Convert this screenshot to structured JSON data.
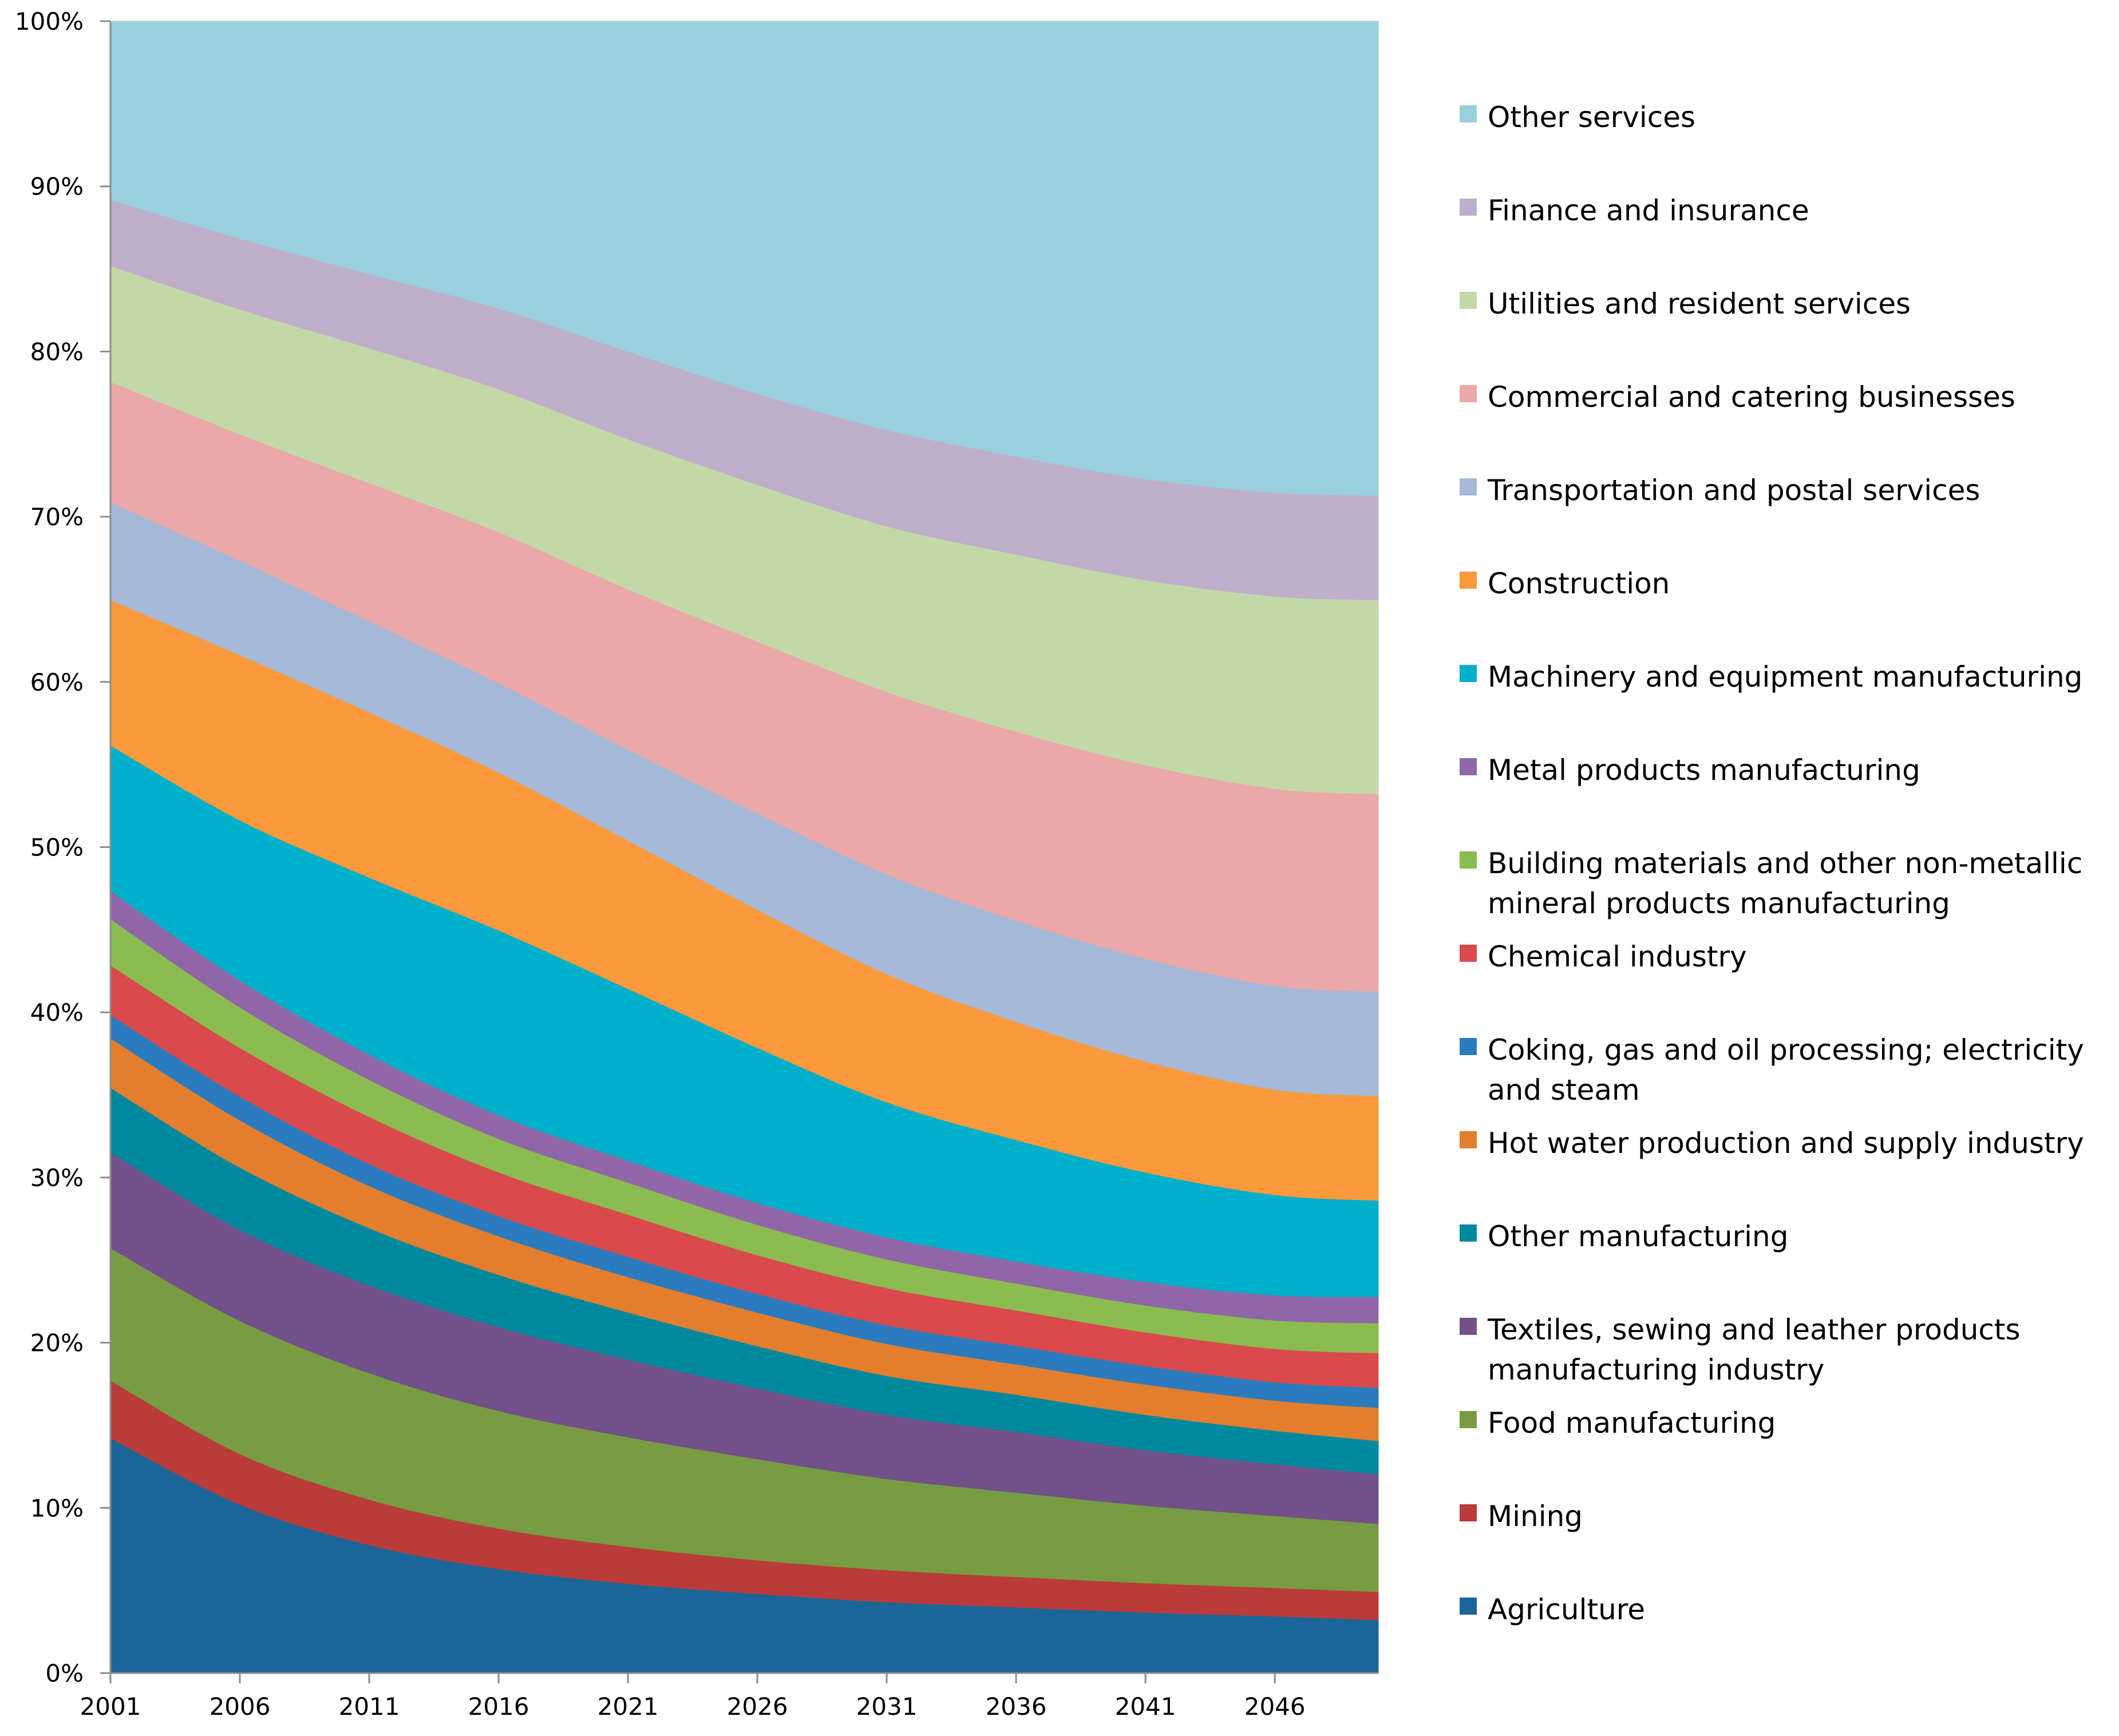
{
  "chart_data": {
    "type": "area",
    "stacked": true,
    "normalized": true,
    "title": "",
    "xlabel": "",
    "ylabel": "",
    "x": [
      2001,
      2006,
      2011,
      2016,
      2021,
      2026,
      2031,
      2036,
      2041,
      2046,
      2050
    ],
    "x_tick_labels": [
      "2001",
      "2006",
      "2011",
      "2016",
      "2021",
      "2026",
      "2031",
      "2036",
      "2041",
      "2046"
    ],
    "ylim": [
      0,
      100
    ],
    "y_ticks": [
      0,
      10,
      20,
      30,
      40,
      50,
      60,
      70,
      80,
      90,
      100
    ],
    "y_tick_labels": [
      "0%",
      "10%",
      "20%",
      "30%",
      "40%",
      "50%",
      "60%",
      "70%",
      "80%",
      "90%",
      "100%"
    ],
    "grid": false,
    "legend_position": "right",
    "series": [
      {
        "name": "Agriculture",
        "color": "#1a6699",
        "values": [
          14.2,
          10.0,
          7.6,
          6.2,
          5.3,
          4.7,
          4.2,
          3.9,
          3.6,
          3.4,
          3.2
        ]
      },
      {
        "name": "Mining",
        "color": "#b93c3a",
        "values": [
          3.5,
          3.0,
          2.7,
          2.4,
          2.2,
          2.0,
          1.9,
          1.8,
          1.75,
          1.7,
          1.7
        ]
      },
      {
        "name": "Food manufacturing",
        "color": "#779c41",
        "values": [
          8.0,
          7.9,
          7.5,
          7.0,
          6.5,
          6.0,
          5.4,
          5.0,
          4.6,
          4.3,
          4.1
        ]
      },
      {
        "name": "Textiles, sewing and leather products manufacturing industry",
        "color": "#72508a",
        "values": [
          5.8,
          5.4,
          5.2,
          5.0,
          4.6,
          4.2,
          3.8,
          3.6,
          3.3,
          3.1,
          3.0
        ]
      },
      {
        "name": "Other manufacturing",
        "color": "#00899e",
        "values": [
          3.9,
          3.7,
          3.4,
          3.1,
          2.8,
          2.5,
          2.3,
          2.2,
          2.1,
          2.0,
          2.0
        ]
      },
      {
        "name": "Hot water production and supply industry",
        "color": "#e27e2e",
        "values": [
          3.0,
          2.8,
          2.5,
          2.3,
          2.1,
          2.0,
          1.9,
          1.8,
          1.8,
          1.8,
          2.0
        ]
      },
      {
        "name": "Coking, gas and oil processing; electricity and steam",
        "color": "#2a7cbf",
        "values": [
          1.4,
          1.4,
          1.3,
          1.2,
          1.2,
          1.1,
          1.1,
          1.1,
          1.1,
          1.1,
          1.2
        ]
      },
      {
        "name": "Chemical industry",
        "color": "#d94a4d",
        "values": [
          3.0,
          2.9,
          2.8,
          2.6,
          2.5,
          2.3,
          2.2,
          2.1,
          2.0,
          2.0,
          2.1
        ]
      },
      {
        "name": "Building materials and other non-metallic mineral products manufacturing",
        "color": "#8cbb4f",
        "values": [
          2.8,
          2.4,
          2.2,
          2.0,
          1.9,
          1.8,
          1.7,
          1.6,
          1.6,
          1.7,
          1.8
        ]
      },
      {
        "name": "Metal products manufacturing",
        "color": "#8f67a8",
        "values": [
          1.7,
          1.6,
          1.5,
          1.4,
          1.3,
          1.3,
          1.3,
          1.3,
          1.4,
          1.5,
          1.6
        ]
      },
      {
        "name": "Machinery and equipment manufacturing",
        "color": "#00afc9",
        "values": [
          8.8,
          9.5,
          10.5,
          11.0,
          10.2,
          9.2,
          8.0,
          7.2,
          6.5,
          6.0,
          5.8
        ]
      },
      {
        "name": "Construction",
        "color": "#fb9a3c",
        "values": [
          8.8,
          9.8,
          9.8,
          9.4,
          8.8,
          8.2,
          7.6,
          7.0,
          6.6,
          6.3,
          6.3
        ]
      },
      {
        "name": "Transportation and postal services",
        "color": "#a5b9d9",
        "values": [
          5.9,
          5.6,
          5.4,
          5.3,
          5.4,
          5.7,
          5.9,
          6.0,
          6.1,
          6.2,
          6.3
        ]
      },
      {
        "name": "Commercial and catering businesses",
        "color": "#eaa9a8",
        "values": [
          7.3,
          7.5,
          8.2,
          9.0,
          9.5,
          10.2,
          10.8,
          11.2,
          11.5,
          11.8,
          11.9
        ]
      },
      {
        "name": "Utilities and resident services",
        "color": "#c2d9a7",
        "values": [
          7.0,
          7.4,
          8.0,
          8.5,
          8.9,
          9.3,
          9.8,
          10.5,
          11.0,
          11.5,
          11.7
        ]
      },
      {
        "name": " Finance and insurance",
        "color": "#c0afcb",
        "values": [
          4.0,
          4.2,
          4.4,
          4.8,
          5.2,
          5.4,
          5.7,
          5.8,
          6.0,
          6.2,
          6.3
        ]
      },
      {
        "name": "Other services",
        "color": "#9acfdc",
        "values": [
          10.8,
          12.9,
          15.0,
          17.1,
          19.6,
          22.1,
          24.2,
          25.8,
          27.2,
          28.2,
          28.6
        ]
      }
    ],
    "legend": [
      [
        "Other services"
      ],
      [
        " Finance and insurance"
      ],
      [
        "Utilities and resident services"
      ],
      [
        "Commercial and catering businesses"
      ],
      [
        "Transportation and postal services"
      ],
      [
        "Construction"
      ],
      [
        "Machinery and equipment manufacturing"
      ],
      [
        "Metal products manufacturing"
      ],
      [
        "Building materials and other non-metallic",
        "mineral products manufacturing"
      ],
      [
        "Chemical industry"
      ],
      [
        "Coking, gas and oil processing; electricity",
        "and steam"
      ],
      [
        "Hot water production and supply industry"
      ],
      [
        "Other manufacturing"
      ],
      [
        "Textiles, sewing and leather products",
        "manufacturing industry"
      ],
      [
        "Food manufacturing"
      ],
      [
        "Mining"
      ],
      [
        "Agriculture"
      ]
    ]
  }
}
